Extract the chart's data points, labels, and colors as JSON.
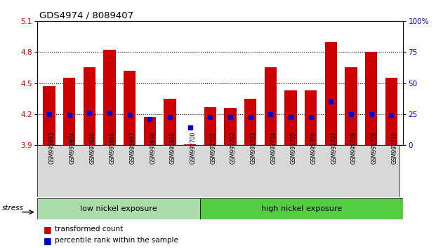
{
  "title": "GDS4974 / 8089407",
  "samples": [
    "GSM992693",
    "GSM992694",
    "GSM992695",
    "GSM992696",
    "GSM992697",
    "GSM992698",
    "GSM992699",
    "GSM992700",
    "GSM992701",
    "GSM992702",
    "GSM992703",
    "GSM992704",
    "GSM992705",
    "GSM992706",
    "GSM992707",
    "GSM992708",
    "GSM992709",
    "GSM992710"
  ],
  "red_values": [
    4.47,
    4.55,
    4.65,
    4.82,
    4.62,
    4.17,
    4.35,
    3.91,
    4.27,
    4.26,
    4.35,
    4.65,
    4.43,
    4.43,
    4.9,
    4.65,
    4.8,
    4.55
  ],
  "blue_values": [
    4.2,
    4.19,
    4.21,
    4.21,
    4.19,
    4.15,
    4.17,
    4.07,
    4.17,
    4.17,
    4.17,
    4.2,
    4.17,
    4.17,
    4.32,
    4.2,
    4.2,
    4.19
  ],
  "ymin": 3.9,
  "ymax": 5.1,
  "yticks": [
    3.9,
    4.2,
    4.5,
    4.8,
    5.1
  ],
  "ytick_labels": [
    "3.9",
    "4.2",
    "4.5",
    "4.8",
    "5.1"
  ],
  "right_yticks": [
    0,
    25,
    50,
    75,
    100
  ],
  "right_ytick_labels": [
    "0",
    "25",
    "50",
    "75",
    "100%"
  ],
  "bar_color": "#cc0000",
  "blue_color": "#0000cc",
  "group1_label": "low nickel exposure",
  "group2_label": "high nickel exposure",
  "group1_count": 8,
  "stress_label": "stress",
  "legend_red": "transformed count",
  "legend_blue": "percentile rank within the sample",
  "background_color": "#ffffff",
  "plot_bg": "#ffffff",
  "group_bg1": "#aaddaa",
  "group_bg2": "#55cc44",
  "tick_label_color_left": "#cc0000",
  "tick_label_color_right": "#0000cc"
}
